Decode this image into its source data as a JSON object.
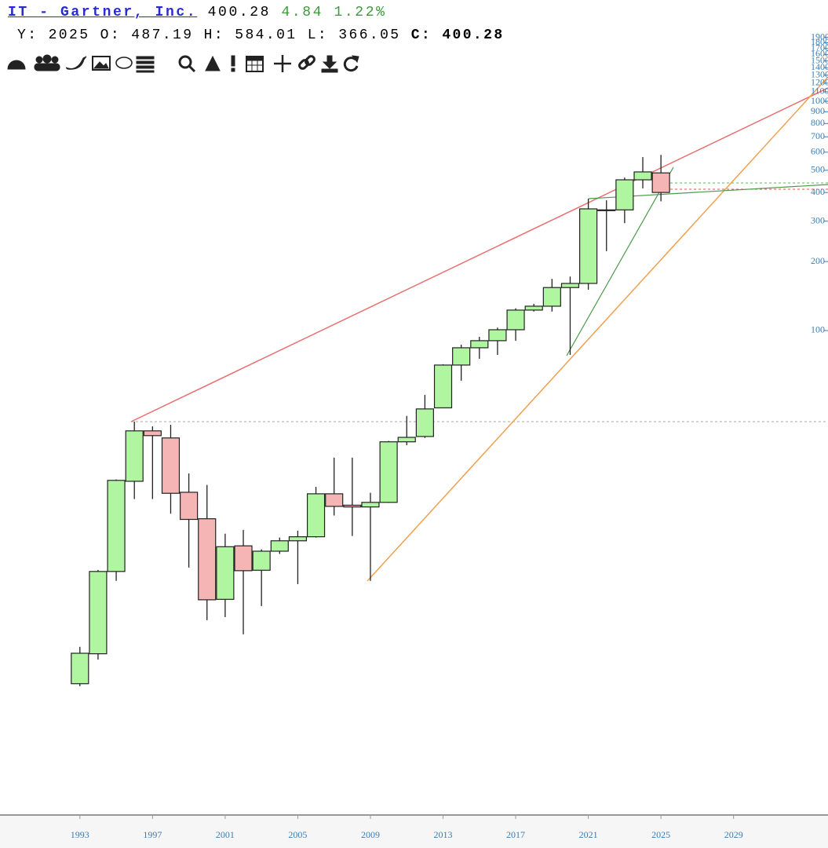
{
  "header": {
    "symbol": "IT - Gartner, Inc.",
    "last": "400.28",
    "change": "4.84",
    "change_pct": "1.22%",
    "period": "Y: 2025",
    "open": "O: 487.19",
    "high": "H: 584.01",
    "low": "L: 366.05",
    "close": "C: 400.28"
  },
  "chart_data": {
    "type": "candlestick",
    "log_scale": true,
    "up_color": "#b0f5a0",
    "down_color": "#f5b5b5",
    "x": [
      1993,
      1994,
      1995,
      1996,
      1997,
      1998,
      1999,
      2000,
      2001,
      2002,
      2003,
      2004,
      2005,
      2006,
      2007,
      2008,
      2009,
      2010,
      2011,
      2012,
      2013,
      2014,
      2015,
      2016,
      2017,
      2018,
      2019,
      2020,
      2021,
      2022,
      2023,
      2024,
      2025
    ],
    "open": [
      2.88,
      3.89,
      8.89,
      22.0,
      36.5,
      34.0,
      19.7,
      15.1,
      6.72,
      11.5,
      9.0,
      10.9,
      12.1,
      12.6,
      19.4,
      17.3,
      17.0,
      17.8,
      32.7,
      34.5,
      46.0,
      70.7,
      84.1,
      90.3,
      100.8,
      122.8,
      127.7,
      154,
      160.5,
      334,
      336,
      454.5,
      487.19
    ],
    "high": [
      4.17,
      9.03,
      22.4,
      40.1,
      38.2,
      38.8,
      23.8,
      21.2,
      13.0,
      13.5,
      11.1,
      12.5,
      13.4,
      20.8,
      27.9,
      27.9,
      19.6,
      33.0,
      42.4,
      52.4,
      71.3,
      86.8,
      93.9,
      103,
      125,
      130.7,
      168,
      172,
      376,
      370,
      465,
      571,
      584.01
    ],
    "low": [
      2.81,
      3.67,
      8.09,
      18.4,
      18.4,
      15.9,
      9.25,
      5.45,
      5.62,
      4.73,
      6.28,
      10.6,
      7.83,
      12.5,
      15.6,
      12.7,
      8.09,
      17.7,
      31.6,
      34.0,
      45.9,
      60.4,
      75.3,
      78.3,
      90.3,
      121,
      121,
      78.3,
      150.7,
      222,
      294,
      417,
      366.05
    ],
    "close": [
      3.91,
      8.89,
      22.2,
      36.5,
      34.8,
      19.5,
      15.0,
      6.69,
      11.4,
      8.96,
      10.9,
      12.1,
      12.6,
      19.4,
      17.1,
      17.0,
      17.8,
      32.7,
      34.2,
      45.5,
      70.7,
      84.1,
      90.3,
      100.8,
      122.8,
      127.7,
      154,
      160.5,
      339.5,
      336,
      454.5,
      492,
      400.28
    ],
    "xlim": [
      1988.6,
      2034.2
    ],
    "xticks": [
      1993,
      1997,
      2001,
      2005,
      2009,
      2013,
      2017,
      2021,
      2025,
      2029
    ],
    "ylim": [
      0.77,
      2018
    ],
    "yticks": [
      100,
      200,
      300,
      400,
      500,
      600,
      700,
      800,
      900,
      1000,
      1100,
      1200,
      1300,
      1400,
      1500,
      1600,
      1700,
      1800,
      1900
    ]
  }
}
